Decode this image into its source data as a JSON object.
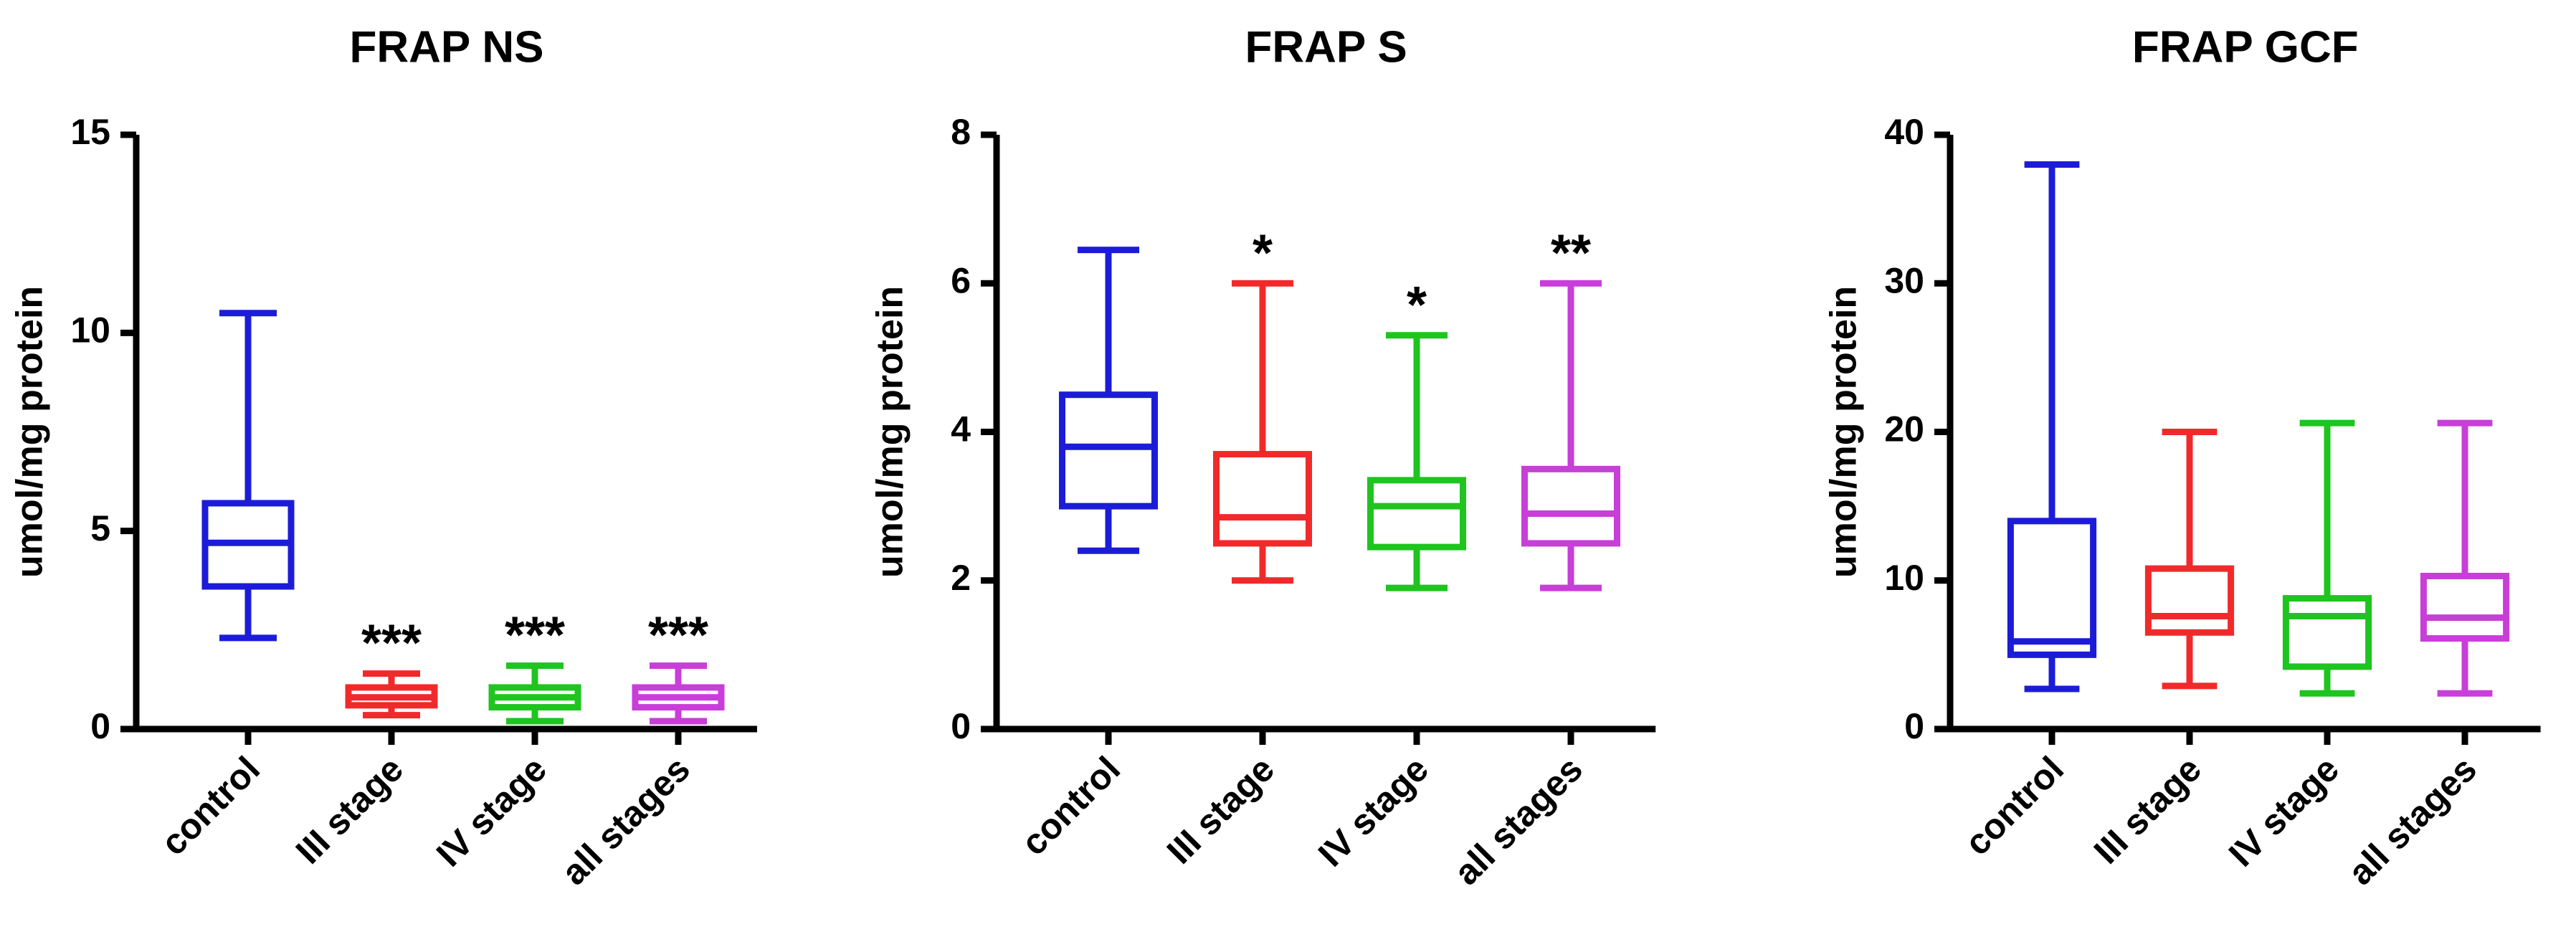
{
  "chart_data": [
    {
      "type": "box",
      "title": "FRAP NS",
      "ylabel": "umol/mg protein",
      "categories": [
        "control",
        "III stage",
        "IV stage",
        "all stages"
      ],
      "boxes": [
        {
          "color": "#1c1cd8",
          "min": 2.3,
          "q1": 3.6,
          "median": 4.7,
          "q3": 5.7,
          "max": 10.5
        },
        {
          "color": "#f02a2a",
          "min": 0.35,
          "q1": 0.6,
          "median": 0.8,
          "q3": 1.05,
          "max": 1.4
        },
        {
          "color": "#1fc41f",
          "min": 0.2,
          "q1": 0.55,
          "median": 0.8,
          "q3": 1.05,
          "max": 1.6
        },
        {
          "color": "#c83ed8",
          "min": 0.2,
          "q1": 0.55,
          "median": 0.8,
          "q3": 1.05,
          "max": 1.6
        }
      ],
      "annotations": [
        null,
        "***",
        "***",
        "***"
      ],
      "ylim": [
        0,
        15
      ],
      "yticks": [
        0,
        5,
        10,
        15
      ]
    },
    {
      "type": "box",
      "title": "FRAP S",
      "ylabel": "umol/mg protein",
      "categories": [
        "control",
        "III stage",
        "IV stage",
        "all stages"
      ],
      "boxes": [
        {
          "color": "#1c1cd8",
          "min": 2.4,
          "q1": 3.0,
          "median": 3.8,
          "q3": 4.5,
          "max": 6.45
        },
        {
          "color": "#f02a2a",
          "min": 2.0,
          "q1": 2.5,
          "median": 2.85,
          "q3": 3.7,
          "max": 6.0
        },
        {
          "color": "#1fc41f",
          "min": 1.9,
          "q1": 2.45,
          "median": 3.0,
          "q3": 3.35,
          "max": 5.3
        },
        {
          "color": "#c83ed8",
          "min": 1.9,
          "q1": 2.5,
          "median": 2.9,
          "q3": 3.5,
          "max": 6.0
        }
      ],
      "annotations": [
        null,
        "*",
        "*",
        "**"
      ],
      "ylim": [
        0,
        8
      ],
      "yticks": [
        0,
        2,
        4,
        6,
        8
      ]
    },
    {
      "type": "box",
      "title": "FRAP GCF",
      "ylabel": "umol/mg protein",
      "categories": [
        "control",
        "III stage",
        "IV stage",
        "all stages"
      ],
      "boxes": [
        {
          "color": "#1c1cd8",
          "min": 2.7,
          "q1": 5.0,
          "median": 5.9,
          "q3": 14.0,
          "max": 38.0
        },
        {
          "color": "#f02a2a",
          "min": 2.9,
          "q1": 6.5,
          "median": 7.6,
          "q3": 10.8,
          "max": 20.0
        },
        {
          "color": "#1fc41f",
          "min": 2.4,
          "q1": 4.2,
          "median": 7.6,
          "q3": 8.8,
          "max": 20.6
        },
        {
          "color": "#c83ed8",
          "min": 2.4,
          "q1": 6.1,
          "median": 7.5,
          "q3": 10.3,
          "max": 20.6
        }
      ],
      "annotations": [
        null,
        null,
        null,
        null
      ],
      "ylim": [
        0,
        40
      ],
      "yticks": [
        0,
        10,
        20,
        30,
        40
      ]
    }
  ]
}
